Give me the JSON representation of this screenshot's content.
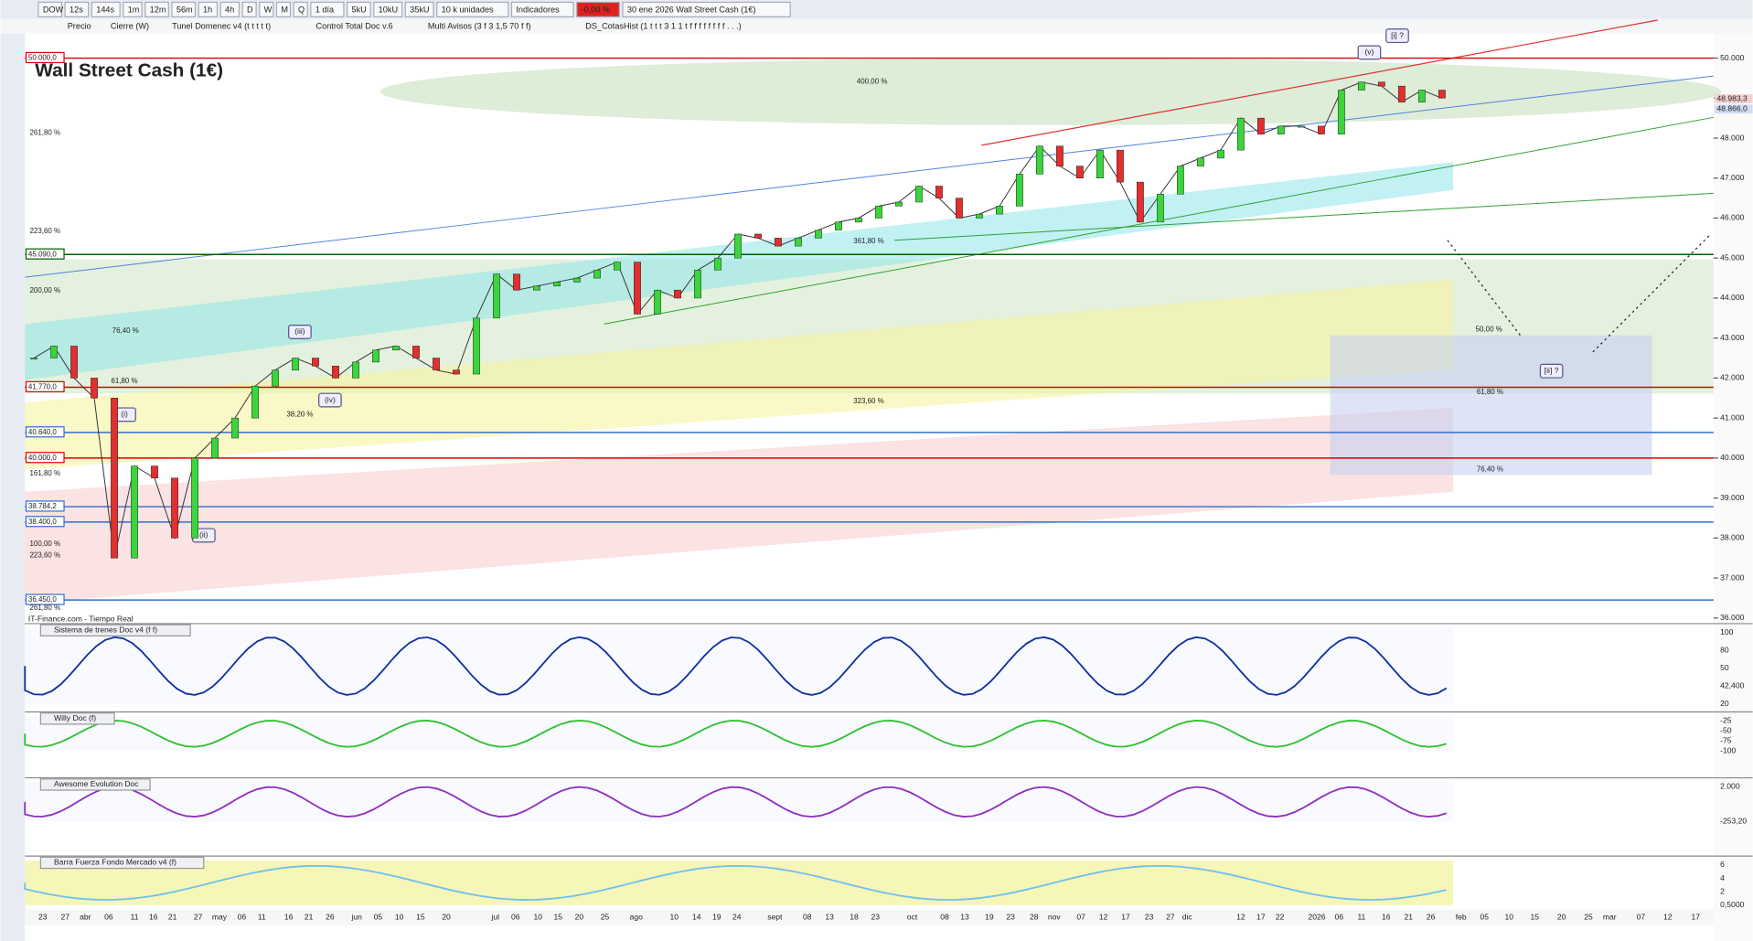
{
  "toolbar": {
    "items": [
      "DOW",
      "12s",
      "144s",
      "1m",
      "12m",
      "56m",
      "1h",
      "4h",
      "D",
      "W",
      "M",
      "Q",
      "1 día",
      "5kU",
      "10kU",
      "35kU",
      "10 k unidades",
      "Indicadores",
      "-0,00 %",
      "30 ene 2026 Wall Street Cash (1€)"
    ]
  },
  "indicators_bar": {
    "items": [
      "Precio",
      "Cierre (W)",
      "Tunel Domenec v4 (t t t t t)",
      "Control Total Doc v.6",
      "Multi Avisos (3 f 3 1,5 70 f f)",
      "DS_CotasHist (1 t t t 3 1 1 t f f f f f f f f . . .)"
    ]
  },
  "chart": {
    "title": "Wall Street Cash (1€)",
    "source": "IT-Finance.com - Tiempo Real",
    "ylim": [
      36000,
      50000
    ],
    "yticks": [
      {
        "value": 50000,
        "label": "50.000"
      },
      {
        "value": 49000,
        "label": "49.000"
      },
      {
        "value": 48000,
        "label": "48.000"
      },
      {
        "value": 47000,
        "label": "47.000"
      },
      {
        "value": 46000,
        "label": "46.000"
      },
      {
        "value": 45000,
        "label": "45.000"
      },
      {
        "value": 44000,
        "label": "44.000"
      },
      {
        "value": 43000,
        "label": "43.000"
      },
      {
        "value": 42000,
        "label": "42.000"
      },
      {
        "value": 41000,
        "label": "41.000"
      },
      {
        "value": 40000,
        "label": "40.000"
      },
      {
        "value": 39000,
        "label": "39.000"
      },
      {
        "value": 38000,
        "label": "38.000"
      },
      {
        "value": 37000,
        "label": "37.000"
      },
      {
        "value": 36000,
        "label": "36.000"
      }
    ],
    "last_prices": [
      {
        "value": 48983.3,
        "label": "48.983,3"
      },
      {
        "value": 48866,
        "label": "48.866,0"
      }
    ],
    "levels": [
      {
        "value": 50000,
        "label": "50.000,0",
        "color": "#e00000"
      },
      {
        "value": 45090,
        "label": "45.090,0",
        "color": "#006000"
      },
      {
        "value": 41770,
        "label": "41.770,0",
        "color": "#e00000"
      },
      {
        "value": 40640,
        "label": "40.640,0",
        "color": "#3070d0"
      },
      {
        "value": 40000,
        "label": "40.000,0",
        "color": "#e00000"
      },
      {
        "value": 38784.2,
        "label": "38.784,2",
        "color": "#3070d0"
      },
      {
        "value": 38400,
        "label": "38.400,0",
        "color": "#3070d0"
      },
      {
        "value": 36450,
        "label": "36.450,0",
        "color": "#3070d0"
      }
    ],
    "fib_labels": [
      "400,00 %",
      "261,80 %",
      "223,60 %",
      "200,00 %",
      "76,40 %",
      "161,80 %",
      "100,00 %",
      "223,60 %",
      "261,80 %",
      "361,80 %",
      "323,60 %",
      "50,00 %",
      "61,80 %",
      "76,40 %",
      "61,80 %",
      "38,20 %"
    ],
    "waves": [
      "[i] ?",
      "(v)",
      "(iii)",
      "(i)",
      "(ii)",
      "(iv)",
      "[ii] ?"
    ],
    "dates": [
      "23",
      "27",
      "abr",
      "06",
      "11",
      "16",
      "21",
      "27",
      "may",
      "06",
      "11",
      "16",
      "21",
      "26",
      "jun",
      "05",
      "10",
      "15",
      "20",
      "jul",
      "06",
      "10",
      "15",
      "20",
      "25",
      "ago",
      "10",
      "14",
      "19",
      "24",
      "sept",
      "08",
      "13",
      "18",
      "23",
      "oct",
      "08",
      "13",
      "19",
      "23",
      "28",
      "nov",
      "07",
      "12",
      "17",
      "23",
      "27",
      "dic",
      "12",
      "17",
      "22",
      "2026",
      "06",
      "11",
      "16",
      "21",
      "26",
      "feb",
      "05",
      "10",
      "15",
      "20",
      "25",
      "mar",
      "07",
      "12",
      "17"
    ],
    "price_series": {
      "values": [
        42500,
        42800,
        42000,
        41500,
        37500,
        39800,
        39500,
        38000,
        40000,
        40500,
        41000,
        41800,
        42200,
        42500,
        42300,
        42000,
        42400,
        42700,
        42800,
        42500,
        42200,
        42100,
        43500,
        44600,
        44200,
        44300,
        44400,
        44500,
        44700,
        44900,
        43600,
        44200,
        44000,
        44700,
        45000,
        45600,
        45500,
        45300,
        45500,
        45700,
        45900,
        46000,
        46300,
        46400,
        46800,
        46500,
        46000,
        46100,
        46300,
        47100,
        47800,
        47300,
        47000,
        47700,
        46900,
        45900,
        46600,
        47300,
        47500,
        47700,
        48500,
        48100,
        48300,
        48300,
        48100,
        49200,
        49400,
        49300,
        48900,
        49200,
        49000
      ]
    }
  },
  "panels": [
    {
      "title": "Sistema de trenes Doc v4 (f f)",
      "labels": [
        "100",
        "80",
        "50",
        "42,400",
        "20"
      ]
    },
    {
      "title": "Willy Doc (f)",
      "labels": [
        "-25",
        "-50",
        "-75",
        "-100"
      ]
    },
    {
      "title": "Awesome Evolution Doc",
      "labels": [
        "2.000",
        "-253,20"
      ]
    },
    {
      "title": "Barra Fuerza Fondo Mercado v4 (f)",
      "labels": [
        "6",
        "4",
        "2",
        "0,5000"
      ]
    }
  ]
}
